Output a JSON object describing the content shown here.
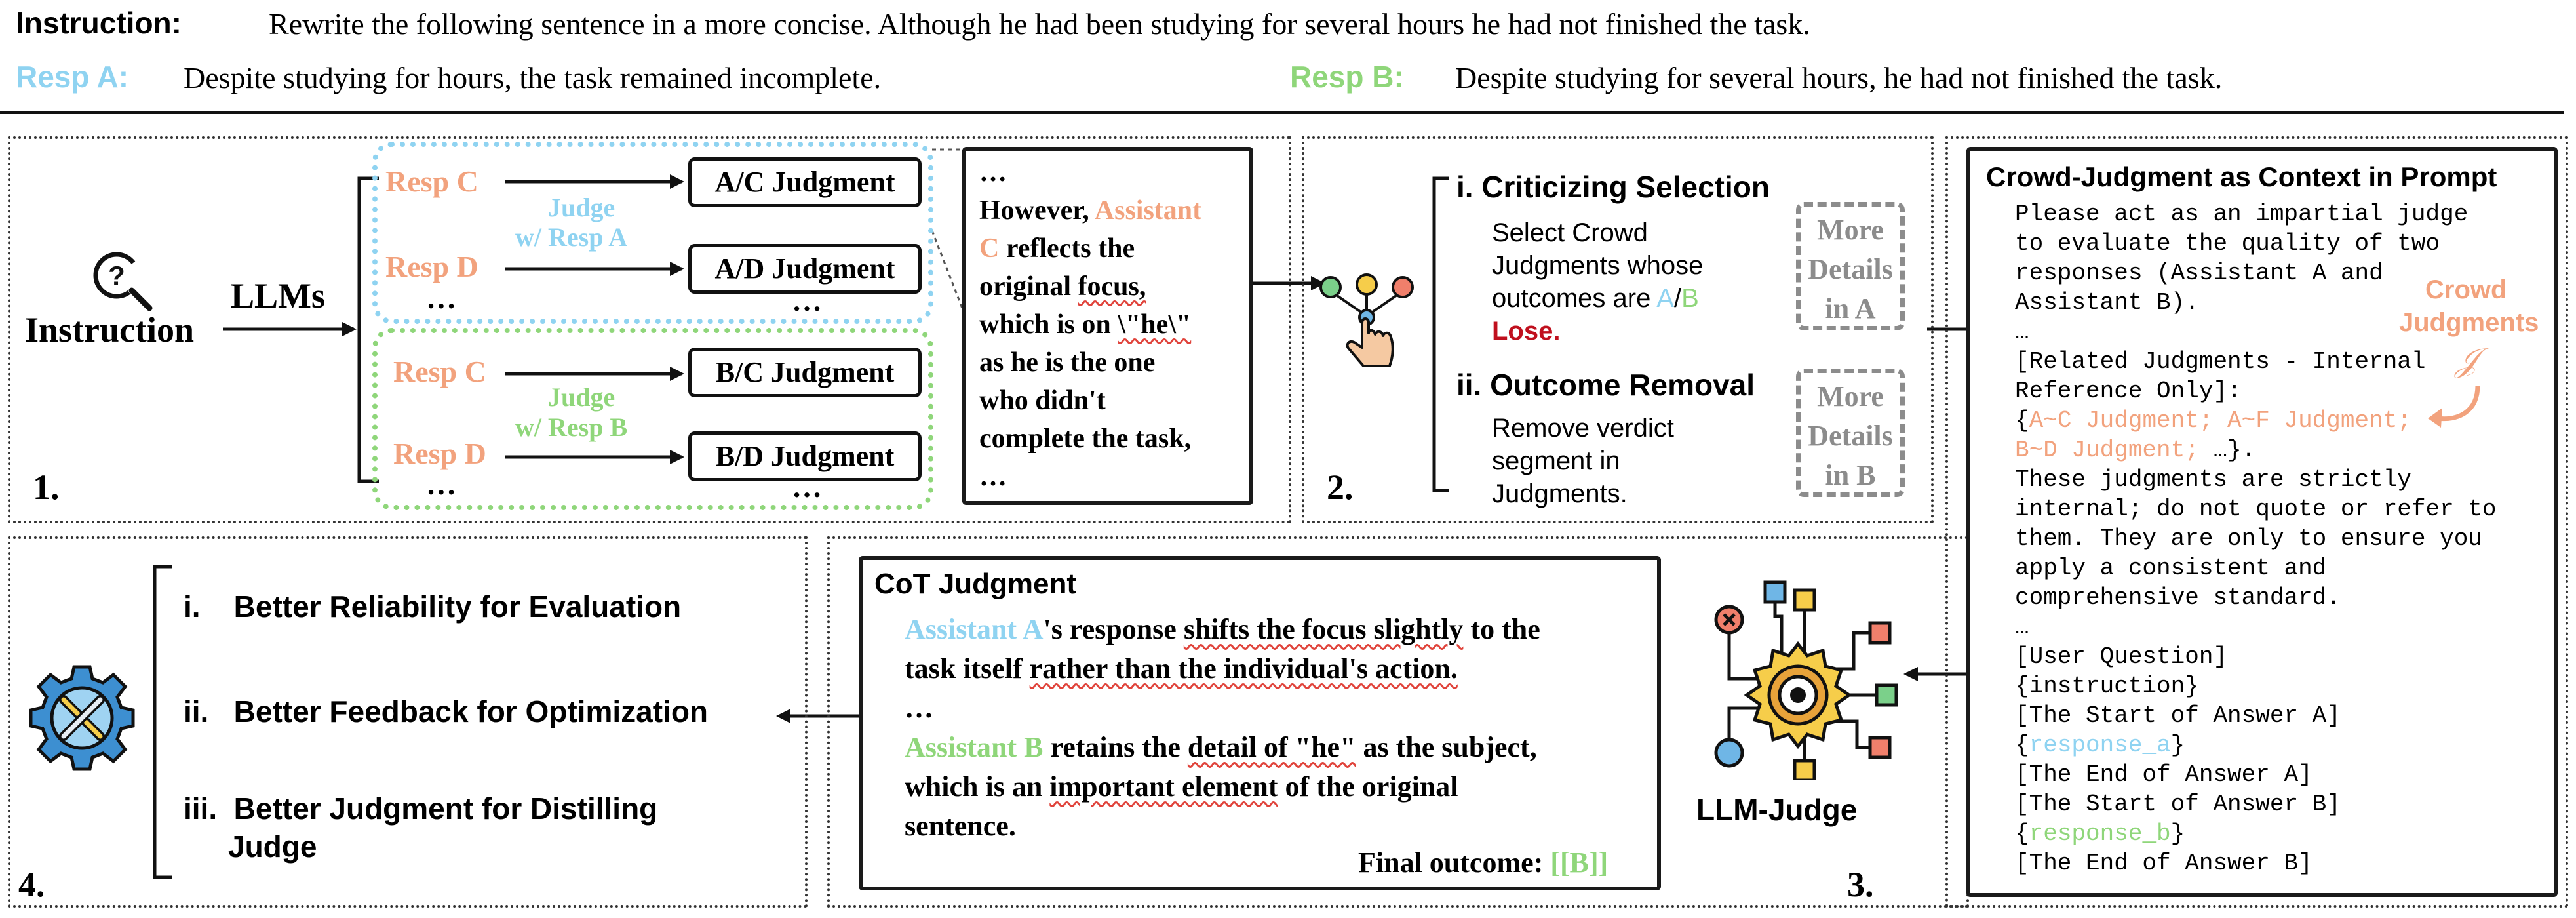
{
  "header": {
    "instruction_label": "Instruction:",
    "instruction_text": "Rewrite the following sentence in a more concise. Although he had been studying for several hours he had not finished the task.",
    "resp_a_label": "Resp A:",
    "resp_a_text": "Despite studying for hours, the task remained incomplete.",
    "resp_b_label": "Resp B:",
    "resp_b_text": "Despite studying for several hours, he had not finished the task."
  },
  "panel1": {
    "number": "1.",
    "instruction_label": "Instruction",
    "llms_label": "LLMs",
    "group_a": {
      "resp_c": "Resp C",
      "resp_d": "Resp D",
      "ellipsis": "…",
      "judge_line1": "Judge",
      "judge_line2": "w/ Resp A",
      "judgment_c": "A/C Judgment",
      "judgment_d": "A/D Judgment",
      "judgment_ellipsis": "…"
    },
    "group_b": {
      "resp_c": "Resp C",
      "resp_d": "Resp D",
      "ellipsis": "…",
      "judge_line1": "Judge",
      "judge_line2": "w/ Resp B",
      "judgment_c": "B/C Judgment",
      "judgment_d": "B/D Judgment",
      "judgment_ellipsis": "…"
    },
    "excerpt": {
      "top_ellipsis": "…",
      "l1_a": "However, ",
      "l1_b": "Assistant",
      "l2_a": "C",
      "l2_b": " reflects the",
      "l3_a": "original ",
      "l3_b": "focus,",
      "l4_a": "which is on ",
      "l4_b": "\\\"he\\\"",
      "l5": "as he is the one",
      "l6": "who didn't",
      "l7": "complete the task,",
      "bottom_ellipsis": "…"
    }
  },
  "panel2": {
    "number": "2.",
    "item1_title": "i.  Criticizing Selection",
    "item1_l1": "Select Crowd",
    "item1_l2": "Judgments whose",
    "item1_l3_a": "outcomes are ",
    "item1_l3_b": "A",
    "item1_l3_c": "/",
    "item1_l3_d": "B",
    "item1_l4": "Lose.",
    "item2_title": "ii.  Outcome Removal",
    "item2_l1": "Remove verdict",
    "item2_l2": "segment in",
    "item2_l3": "Judgments.",
    "more_a_l1": "More",
    "more_a_l2": "Details",
    "more_a_l3": "in A",
    "more_b_l1": "More",
    "more_b_l2": "Details",
    "more_b_l3": "in B"
  },
  "panel3": {
    "number": "3.",
    "llm_judge_label": "LLM-Judge",
    "prompt_title": "Crowd-Judgment as Context in Prompt",
    "crowd_label_l1": "Crowd",
    "crowd_label_l2": "Judgments",
    "crowd_symbol": "𝒥",
    "lines": {
      "l1": "Please act as an impartial judge",
      "l2": "to evaluate the quality of two",
      "l3": "responses (Assistant A and",
      "l4": "Assistant B).",
      "l5": "…",
      "l6": "[Related Judgments - Internal",
      "l7": "Reference Only]:",
      "l8_a": "{",
      "l8_b": "A~C Judgment;  A~F Judgment;",
      "l9_a": " B~D Judgment;",
      "l9_b": " …}.",
      "l10": "These judgments are strictly",
      "l11": "internal; do not quote or refer to",
      "l12": "them. They are only to ensure you",
      "l13": "apply a consistent and",
      "l14": "comprehensive standard.",
      "l15": "…",
      "l16": "[User Question]",
      "l17": "{instruction}",
      "l18": "[The Start of Answer A]",
      "l19_a": "{",
      "l19_b": "response_a",
      "l19_c": "}",
      "l20": "[The End of Answer A]",
      "l21": "[The Start of Answer B]",
      "l22_a": "{",
      "l22_b": "response_b",
      "l22_c": "}",
      "l23": "[The End of Answer B]"
    }
  },
  "cot": {
    "title": "CoT Judgment",
    "l1_a": "Assistant A",
    "l1_b": "'s response ",
    "l1_c": "shifts the focus slightly",
    "l1_d": " to the",
    "l2_a": "task itself ",
    "l2_b": "rather than the individual's action.",
    "l3": "…",
    "l4_a": "Assistant B",
    "l4_b": " retains the ",
    "l4_c": "detail of \"he\"",
    "l4_d": " as the subject,",
    "l5_a": "which is an ",
    "l5_b": "important element",
    "l5_c": " of the original",
    "l6": "sentence.",
    "final_label": "Final outcome: ",
    "final_value": "[[B]]"
  },
  "panel4": {
    "number": "4.",
    "item1": "i.    Better Reliability for Evaluation",
    "item2": "ii.   Better Feedback for Optimization",
    "item3_l1": "iii.  Better Judgment for Distilling",
    "item3_l2": "Judge"
  },
  "colors": {
    "resp_orange": "#F2A27D",
    "resp_a_blue": "#8FD3F1",
    "resp_b_green": "#8FD67A",
    "lose_red": "#C0101E",
    "squiggle_red": "#E0443C"
  }
}
